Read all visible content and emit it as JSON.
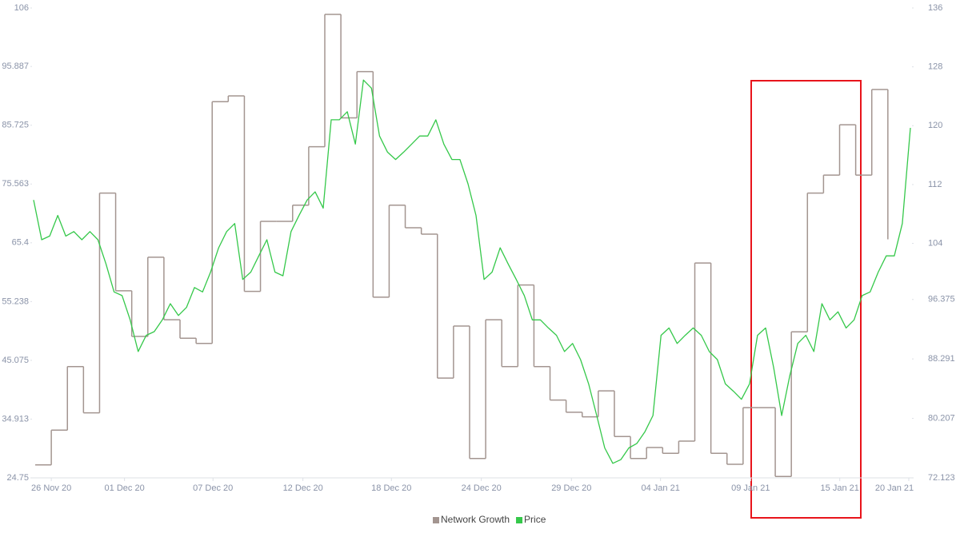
{
  "chart_data": {
    "type": "line",
    "xlim": [
      -1.2,
      53.5
    ],
    "xticks": [
      {
        "value": 0,
        "label": "26 Nov 20"
      },
      {
        "value": 4.55,
        "label": "01 Dec 20"
      },
      {
        "value": 10.05,
        "label": "07 Dec 20"
      },
      {
        "value": 15.64,
        "label": "12 Dec 20"
      },
      {
        "value": 21.14,
        "label": "18 Dec 20"
      },
      {
        "value": 26.73,
        "label": "24 Dec 20"
      },
      {
        "value": 32.33,
        "label": "29 Dec 20"
      },
      {
        "value": 37.87,
        "label": "04 Jan 21"
      },
      {
        "value": 43.47,
        "label": "09 Jan 21"
      },
      {
        "value": 49.01,
        "label": "15 Jan 21"
      },
      {
        "value": 53.3,
        "label": "20 Jan 21"
      }
    ],
    "ylim": [
      24.75,
      106
    ],
    "yticks": [
      24.75,
      34.913,
      45.075,
      55.238,
      65.4,
      75.563,
      85.725,
      95.887,
      106
    ],
    "y2lim": [
      72.123,
      136
    ],
    "y2ticks": [
      72.123,
      80.207,
      88.291,
      96.375,
      104,
      112,
      120,
      128,
      136
    ],
    "legend": "bottom",
    "series": [
      {
        "name": "Network Growth",
        "color": "#a39590",
        "step": true,
        "x": [
          -1,
          0,
          1,
          2,
          3,
          4,
          5,
          6,
          7,
          8,
          9,
          10,
          11,
          12,
          13,
          14,
          15,
          16,
          17,
          18,
          19,
          20,
          21,
          22,
          23,
          24,
          25,
          26,
          27,
          28,
          29,
          30,
          31,
          32,
          33,
          34,
          35,
          36,
          37,
          38,
          39,
          40,
          41,
          42,
          43,
          44,
          45,
          46,
          47,
          48,
          49,
          50,
          51,
          52
        ],
        "values": [
          27,
          33,
          44,
          36,
          74,
          57.1,
          49.2,
          62.9,
          52.1,
          48.9,
          48,
          89.8,
          90.8,
          57,
          69.1,
          69.1,
          71.9,
          82,
          104.9,
          87,
          95,
          56,
          71.9,
          68,
          66.9,
          42,
          51,
          28.1,
          52.1,
          44,
          58.1,
          44,
          38.2,
          36.1,
          35.3,
          39.8,
          31.9,
          28.1,
          30,
          29,
          31.1,
          61.9,
          29,
          27.1,
          36.9,
          36.9,
          25,
          50,
          74,
          77.1,
          85.8,
          77.1,
          91.9,
          66
        ]
      },
      {
        "name": "Price",
        "color": "#35c84a",
        "axis": "y2",
        "x": [
          -1.1,
          -0.6,
          -0.1,
          0.4,
          0.9,
          1.4,
          1.9,
          2.4,
          2.9,
          3.4,
          3.9,
          4.4,
          4.9,
          5.4,
          5.9,
          6.4,
          6.9,
          7.4,
          7.9,
          8.4,
          8.9,
          9.4,
          9.9,
          10.4,
          10.9,
          11.4,
          11.9,
          12.4,
          12.9,
          13.4,
          13.9,
          14.4,
          14.9,
          15.4,
          15.9,
          16.4,
          16.9,
          17.4,
          17.9,
          18.4,
          18.9,
          19.4,
          19.9,
          20.4,
          20.9,
          21.4,
          21.9,
          22.4,
          22.9,
          23.4,
          23.9,
          24.4,
          24.9,
          25.4,
          25.9,
          26.4,
          26.9,
          27.4,
          27.9,
          28.4,
          28.9,
          29.4,
          29.9,
          30.4,
          30.9,
          31.4,
          31.9,
          32.4,
          32.9,
          33.4,
          33.9,
          34.4,
          34.9,
          35.4,
          35.9,
          36.4,
          36.9,
          37.4,
          37.9,
          38.4,
          38.9,
          39.4,
          39.9,
          40.4,
          40.9,
          41.4,
          41.9,
          42.4,
          42.9,
          43.4,
          43.9,
          44.4,
          44.9,
          45.4,
          45.9,
          46.4,
          46.9,
          47.4,
          47.9,
          48.4,
          48.9,
          49.4,
          49.9,
          50.4,
          50.9,
          51.4,
          51.9,
          52.4,
          52.9,
          53.4
        ],
        "values": [
          109.9,
          104.5,
          105,
          107.8,
          105,
          105.6,
          104.5,
          105.6,
          104.5,
          101.2,
          97.4,
          96.9,
          93.6,
          89.3,
          91.5,
          92,
          93.6,
          95.8,
          94.2,
          95.3,
          98,
          97.4,
          100.1,
          103.4,
          105.6,
          106.7,
          99.1,
          100.1,
          102.3,
          104.5,
          100.1,
          99.6,
          105.6,
          107.8,
          109.9,
          111,
          108.8,
          120.8,
          120.8,
          121.9,
          117.5,
          126.2,
          125.1,
          118.6,
          116.4,
          115.4,
          116.4,
          117.5,
          118.6,
          118.6,
          120.8,
          117.5,
          115.4,
          115.4,
          112.1,
          107.8,
          99.1,
          100.1,
          103.4,
          101.2,
          99.1,
          96.9,
          93.6,
          93.6,
          92.5,
          91.5,
          89.3,
          90.4,
          88.2,
          84.9,
          80.6,
          76.2,
          74.1,
          74.6,
          76.2,
          76.8,
          78.4,
          80.6,
          91.5,
          92.5,
          90.4,
          91.5,
          92.5,
          91.5,
          89.3,
          88.2,
          84.9,
          83.9,
          82.8,
          84.9,
          91.5,
          92.5,
          87.1,
          80.6,
          86,
          90.4,
          91.5,
          89.3,
          95.8,
          93.6,
          94.7,
          92.5,
          93.6,
          96.9,
          97.4,
          100.1,
          102.3,
          102.3,
          106.7,
          119.7
        ]
      }
    ]
  }
}
